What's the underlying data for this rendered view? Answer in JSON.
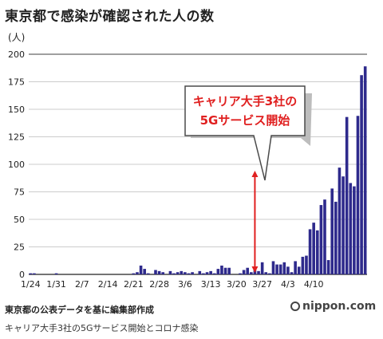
{
  "chart_data": {
    "type": "bar",
    "title": "東京都で感染が確認された人の数",
    "unit_label": "(人)",
    "ylim": [
      0,
      200
    ],
    "yticks": [
      0,
      25,
      50,
      75,
      100,
      125,
      150,
      175,
      200
    ],
    "x_start": "2020-01-24",
    "x_tick_labels": [
      "1/24",
      "1/31",
      "2/7",
      "2/14",
      "2/21",
      "2/28",
      "3/6",
      "3/13",
      "3/20",
      "3/27",
      "4/3",
      "4/10"
    ],
    "bar_color": "#2e2a8c",
    "values": [
      1,
      1,
      0,
      0,
      0,
      0,
      0,
      1,
      0,
      0,
      0,
      0,
      0,
      0,
      0,
      0,
      0,
      0,
      0,
      0,
      0,
      0,
      0,
      0,
      0,
      0,
      0,
      0,
      1,
      2,
      8,
      5,
      1,
      0,
      4,
      3,
      2,
      0,
      3,
      1,
      2,
      3,
      2,
      1,
      2,
      0,
      3,
      1,
      2,
      3,
      1,
      5,
      8,
      6,
      6,
      0,
      0,
      1,
      4,
      6,
      2,
      4,
      3,
      11,
      2,
      1,
      12,
      9,
      9,
      11,
      7,
      2,
      12,
      7,
      16,
      17,
      41,
      47,
      40,
      63,
      68,
      13,
      78,
      66,
      97,
      89,
      143,
      83,
      80,
      144,
      181,
      189
    ],
    "annotation": {
      "lines": [
        "キャリア大手3社の",
        "5Gサービス開始"
      ],
      "date": "2020-03-25",
      "text_color": "#e02020"
    }
  },
  "source": "東京都の公表データを基に編集部作成",
  "caption": "キャリア大手3社の5Gサービス開始とコロナ感染",
  "logo": "nippon.com"
}
